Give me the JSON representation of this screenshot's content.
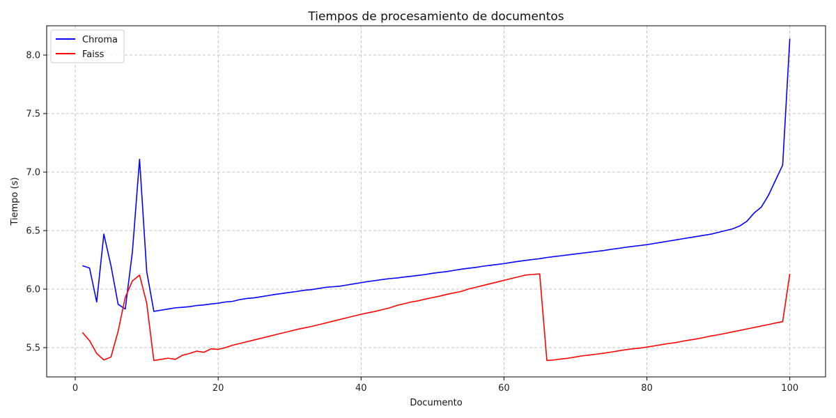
{
  "chart_data": {
    "type": "line",
    "title": "Tiempos de procesamiento de documentos",
    "xlabel": "Documento",
    "ylabel": "Tiempo (s)",
    "xlim": [
      -4,
      105
    ],
    "ylim": [
      5.25,
      8.25
    ],
    "xticks": [
      0,
      20,
      40,
      60,
      80,
      100
    ],
    "yticks": [
      5.5,
      6.0,
      6.5,
      7.0,
      7.5,
      8.0
    ],
    "xtick_labels": [
      "0",
      "20",
      "40",
      "60",
      "80",
      "100"
    ],
    "ytick_labels": [
      "5.5",
      "6.0",
      "6.5",
      "7.0",
      "7.5",
      "8.0"
    ],
    "grid": true,
    "legend_position": "top-left",
    "series": [
      {
        "name": "Chroma",
        "color": "#0000ff",
        "x": [
          1,
          2,
          3,
          4,
          5,
          6,
          7,
          8,
          9,
          10,
          11,
          12,
          13,
          14,
          15,
          16,
          17,
          18,
          19,
          20,
          21,
          22,
          23,
          24,
          25,
          26,
          27,
          28,
          29,
          30,
          31,
          32,
          33,
          34,
          35,
          36,
          37,
          38,
          39,
          40,
          41,
          42,
          43,
          44,
          45,
          46,
          47,
          48,
          49,
          50,
          51,
          52,
          53,
          54,
          55,
          56,
          57,
          58,
          59,
          60,
          61,
          62,
          63,
          64,
          65,
          66,
          67,
          68,
          69,
          70,
          71,
          72,
          73,
          74,
          75,
          76,
          77,
          78,
          79,
          80,
          81,
          82,
          83,
          84,
          85,
          86,
          87,
          88,
          89,
          90,
          91,
          92,
          93,
          94,
          95,
          96,
          97,
          98,
          99,
          100
        ],
        "values": [
          6.2,
          6.18,
          5.89,
          6.47,
          6.2,
          5.87,
          5.83,
          6.32,
          7.11,
          6.15,
          5.81,
          5.82,
          5.83,
          5.84,
          5.845,
          5.85,
          5.86,
          5.865,
          5.873,
          5.88,
          5.89,
          5.895,
          5.91,
          5.92,
          5.925,
          5.935,
          5.945,
          5.955,
          5.963,
          5.972,
          5.98,
          5.99,
          5.995,
          6.005,
          6.015,
          6.02,
          6.025,
          6.035,
          6.045,
          6.055,
          6.065,
          6.073,
          6.082,
          6.09,
          6.095,
          6.103,
          6.11,
          6.117,
          6.125,
          6.135,
          6.143,
          6.15,
          6.16,
          6.17,
          6.178,
          6.185,
          6.195,
          6.203,
          6.21,
          6.218,
          6.228,
          6.237,
          6.245,
          6.253,
          6.26,
          6.27,
          6.278,
          6.285,
          6.293,
          6.3,
          6.308,
          6.315,
          6.323,
          6.33,
          6.34,
          6.348,
          6.357,
          6.365,
          6.372,
          6.38,
          6.39,
          6.4,
          6.41,
          6.42,
          6.43,
          6.44,
          6.45,
          6.46,
          6.47,
          6.485,
          6.5,
          6.515,
          6.54,
          6.58,
          6.65,
          6.7,
          6.8,
          6.93,
          7.06,
          8.14
        ]
      },
      {
        "name": "Faiss",
        "color": "#ff0000",
        "x": [
          1,
          2,
          3,
          4,
          5,
          6,
          7,
          8,
          9,
          10,
          11,
          12,
          13,
          14,
          15,
          16,
          17,
          18,
          19,
          20,
          21,
          22,
          23,
          24,
          25,
          26,
          27,
          28,
          29,
          30,
          31,
          32,
          33,
          34,
          35,
          36,
          37,
          38,
          39,
          40,
          41,
          42,
          43,
          44,
          45,
          46,
          47,
          48,
          49,
          50,
          51,
          52,
          53,
          54,
          55,
          56,
          57,
          58,
          59,
          60,
          61,
          62,
          63,
          64,
          65,
          66,
          67,
          68,
          69,
          70,
          71,
          72,
          73,
          74,
          75,
          76,
          77,
          78,
          79,
          80,
          81,
          82,
          83,
          84,
          85,
          86,
          87,
          88,
          89,
          90,
          91,
          92,
          93,
          94,
          95,
          96,
          97,
          98,
          99,
          100
        ],
        "values": [
          5.63,
          5.56,
          5.45,
          5.395,
          5.42,
          5.64,
          5.93,
          6.07,
          6.12,
          5.88,
          5.39,
          5.4,
          5.41,
          5.4,
          5.435,
          5.45,
          5.47,
          5.46,
          5.49,
          5.485,
          5.5,
          5.52,
          5.535,
          5.55,
          5.565,
          5.58,
          5.595,
          5.61,
          5.625,
          5.64,
          5.655,
          5.668,
          5.68,
          5.695,
          5.71,
          5.725,
          5.74,
          5.755,
          5.77,
          5.785,
          5.798,
          5.81,
          5.825,
          5.84,
          5.86,
          5.875,
          5.89,
          5.9,
          5.915,
          5.928,
          5.94,
          5.955,
          5.968,
          5.98,
          6.0,
          6.015,
          6.03,
          6.045,
          6.06,
          6.075,
          6.09,
          6.105,
          6.12,
          6.125,
          6.13,
          5.39,
          5.395,
          5.403,
          5.41,
          5.42,
          5.43,
          5.437,
          5.445,
          5.453,
          5.462,
          5.472,
          5.482,
          5.49,
          5.496,
          5.505,
          5.515,
          5.525,
          5.535,
          5.543,
          5.555,
          5.565,
          5.575,
          5.587,
          5.6,
          5.61,
          5.622,
          5.635,
          5.647,
          5.66,
          5.672,
          5.685,
          5.697,
          5.71,
          5.722,
          6.13
        ]
      }
    ]
  }
}
